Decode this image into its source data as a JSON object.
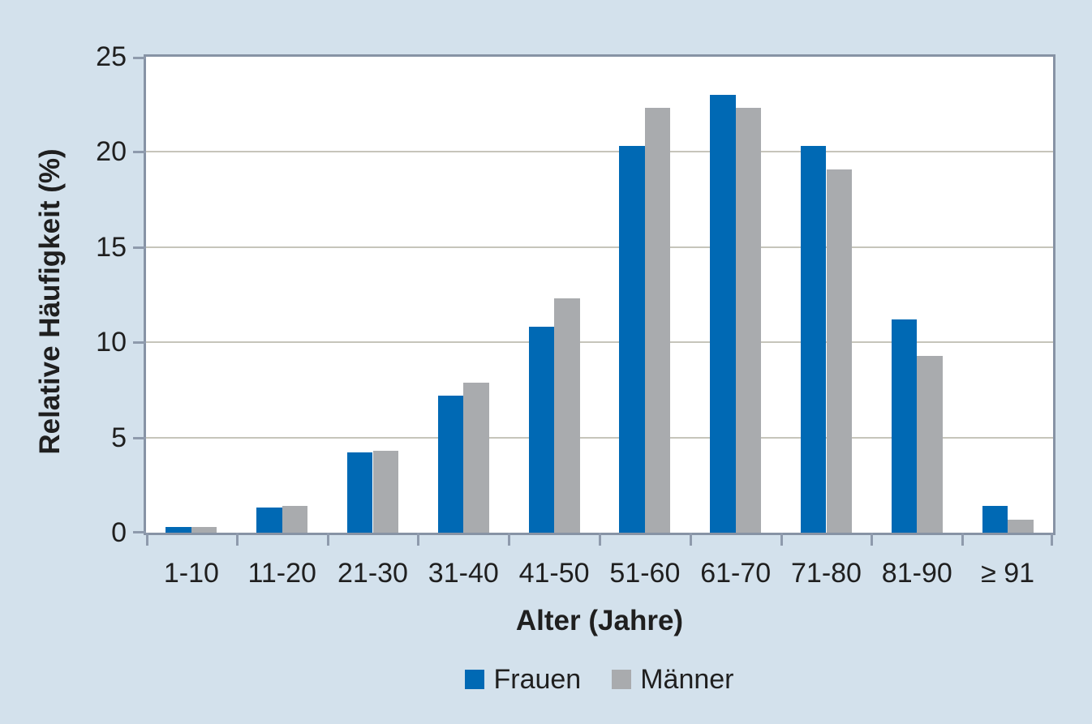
{
  "chart_data": {
    "type": "bar",
    "title": "",
    "categories": [
      "1-10",
      "11-20",
      "21-30",
      "31-40",
      "41-50",
      "51-60",
      "61-70",
      "71-80",
      "81-90",
      "≥ 91"
    ],
    "series": [
      {
        "name": "Frauen",
        "color": "#0069b4",
        "values": [
          0.3,
          1.3,
          4.2,
          7.2,
          10.8,
          20.3,
          23.0,
          20.3,
          11.2,
          1.4
        ]
      },
      {
        "name": "Männer",
        "color": "#a9abae",
        "values": [
          0.3,
          1.4,
          4.3,
          7.9,
          12.3,
          22.3,
          22.3,
          19.1,
          9.3,
          0.7
        ]
      }
    ],
    "xlabel": "Alter (Jahre)",
    "ylabel": "Relative Häufigkeit (%)",
    "ylim": [
      0,
      25
    ],
    "yticks": [
      0,
      5,
      10,
      15,
      20,
      25
    ],
    "grid": "horizontal",
    "legend_position": "bottom",
    "colors": {
      "background": "#d3e1ec",
      "plot_background": "#ffffff",
      "frame": "#8793a5",
      "gridline": "#c6c5bb",
      "tick": "#8e9aac",
      "text": "#1f1f1f"
    }
  }
}
